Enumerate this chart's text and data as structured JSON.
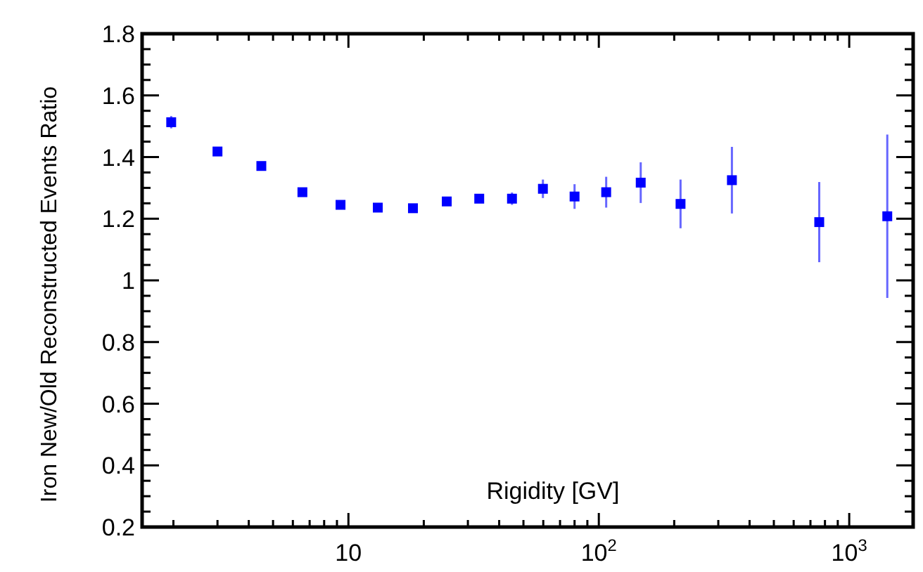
{
  "chart_data": {
    "type": "scatter",
    "xlabel": "Rigidity [GV]",
    "ylabel": "Iron New/Old  Reconstructed Events Ratio",
    "log": "x",
    "marker": "square",
    "grid": false,
    "xlim": [
      1.5,
      1800
    ],
    "ylim": [
      0.2,
      1.8
    ],
    "xticks": [
      {
        "value": 2,
        "label": null
      },
      {
        "value": 3,
        "label": null
      },
      {
        "value": 4,
        "label": null
      },
      {
        "value": 5,
        "label": null
      },
      {
        "value": 6,
        "label": null
      },
      {
        "value": 7,
        "label": null
      },
      {
        "value": 8,
        "label": null
      },
      {
        "value": 9,
        "label": null
      },
      10,
      {
        "value": 20,
        "label": null
      },
      {
        "value": 30,
        "label": null
      },
      {
        "value": 40,
        "label": null
      },
      {
        "value": 50,
        "label": null
      },
      {
        "value": 60,
        "label": null
      },
      {
        "value": 70,
        "label": null
      },
      {
        "value": 80,
        "label": null
      },
      {
        "value": 90,
        "label": null
      },
      {
        "value": 100,
        "label": "10$^{2}$"
      },
      {
        "value": 200,
        "label": null
      },
      {
        "value": 300,
        "label": null
      },
      {
        "value": 400,
        "label": null
      },
      {
        "value": 500,
        "label": null
      },
      {
        "value": 600,
        "label": null
      },
      {
        "value": 700,
        "label": null
      },
      {
        "value": 800,
        "label": null
      },
      {
        "value": 900,
        "label": null
      },
      {
        "value": 1000,
        "label": "10$^{3}$"
      }
    ],
    "yticks": [
      0.2,
      0.4,
      0.6,
      0.8,
      {
        "value": 1,
        "label": "1"
      },
      1.2,
      1.4,
      1.6,
      1.8
    ],
    "series": [
      {
        "color": "#0000ff",
        "x": [
          1.96,
          3.0,
          4.49,
          6.55,
          9.3,
          13.1,
          18.1,
          24.7,
          33.3,
          45,
          59.8,
          80,
          107,
          147,
          212,
          340,
          759,
          1419
        ],
        "values": [
          1.513,
          1.418,
          1.371,
          1.286,
          1.245,
          1.236,
          1.234,
          1.256,
          1.265,
          1.265,
          1.297,
          1.272,
          1.286,
          1.317,
          1.248,
          1.325,
          1.189,
          1.208
        ],
        "errors": [
          0.02,
          null,
          null,
          null,
          null,
          null,
          null,
          null,
          0.01,
          0.02,
          0.03,
          0.04,
          0.05,
          0.066,
          0.079,
          0.108,
          0.13,
          0.265
        ]
      }
    ]
  }
}
